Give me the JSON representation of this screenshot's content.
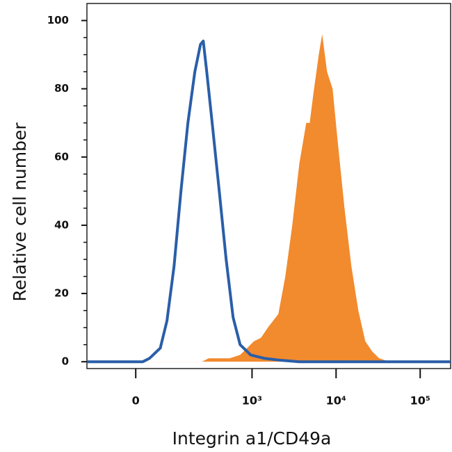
{
  "chart_data": {
    "type": "line",
    "xlabel": "Integrin a1/CD49a",
    "ylabel": "Relative cell number",
    "xscale": "asinh",
    "xlim": [
      -147,
      230000
    ],
    "xticks": [
      0,
      {
        "value": 1000,
        "label": "10³"
      },
      {
        "value": 10000,
        "label": "10⁴"
      },
      {
        "value": 100000,
        "label": "10⁵"
      }
    ],
    "ylim": [
      -2,
      105
    ],
    "yticks": [
      0,
      20,
      40,
      60,
      80,
      100
    ],
    "series": [
      {
        "color": "#f28a2e",
        "filled": true,
        "x": [
          -147,
          246,
          301,
          540,
          720,
          871,
          1054,
          1278,
          1544,
          2058,
          2490,
          3013,
          3650,
          4416,
          4856,
          5337,
          6225,
          6839,
          7810,
          9097,
          10400,
          12583,
          15214,
          18401,
          22261,
          26917,
          32561,
          43300,
          230000
        ],
        "values": [
          0,
          0,
          1,
          1,
          2,
          4,
          6,
          7,
          10,
          14,
          25,
          40,
          58,
          70,
          70,
          78,
          90,
          96,
          85,
          80,
          65,
          45,
          28,
          15,
          6,
          3,
          1,
          0,
          0
        ]
      },
      {
        "color": "#2a5ea8",
        "filled": false,
        "x": [
          -147,
          16,
          32,
          60,
          80,
          104,
          131,
          163,
          201,
          237,
          257,
          284,
          331,
          404,
          490,
          594,
          720,
          963,
          1400,
          2060,
          3650,
          230000
        ],
        "values": [
          0,
          0,
          1,
          4,
          12,
          28,
          50,
          70,
          85,
          93,
          94,
          85,
          70,
          50,
          30,
          13,
          5,
          2,
          1,
          0.5,
          0,
          0
        ]
      }
    ]
  }
}
